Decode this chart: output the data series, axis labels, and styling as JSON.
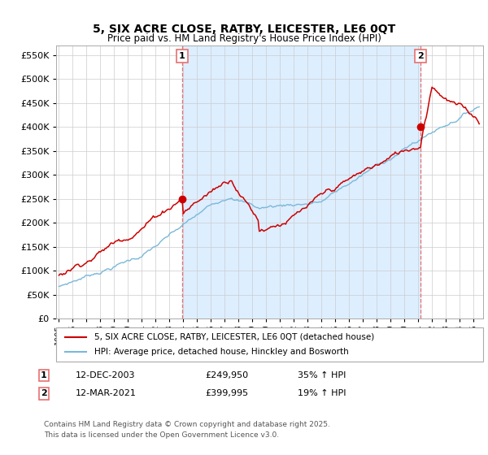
{
  "title": "5, SIX ACRE CLOSE, RATBY, LEICESTER, LE6 0QT",
  "subtitle": "Price paid vs. HM Land Registry's House Price Index (HPI)",
  "ylim": [
    0,
    570000
  ],
  "yticks": [
    0,
    50000,
    100000,
    150000,
    200000,
    250000,
    300000,
    350000,
    400000,
    450000,
    500000,
    550000
  ],
  "xmin": 1995,
  "xmax": 2025,
  "transaction1_x": 2003.917,
  "transaction1_price": 249950,
  "transaction1_label": "1",
  "transaction1_date": "12-DEC-2003",
  "transaction1_pct": "35% ↑ HPI",
  "transaction2_x": 2021.167,
  "transaction2_price": 399995,
  "transaction2_label": "2",
  "transaction2_date": "12-MAR-2021",
  "transaction2_pct": "19% ↑ HPI",
  "hpi_color": "#7bb8d8",
  "price_color": "#cc0000",
  "vline_color": "#e87070",
  "shade_color": "#ddeeff",
  "legend_house": "5, SIX ACRE CLOSE, RATBY, LEICESTER, LE6 0QT (detached house)",
  "legend_hpi": "HPI: Average price, detached house, Hinckley and Bosworth",
  "footer": "Contains HM Land Registry data © Crown copyright and database right 2025.\nThis data is licensed under the Open Government Licence v3.0.",
  "background_color": "#ffffff",
  "grid_color": "#cccccc"
}
